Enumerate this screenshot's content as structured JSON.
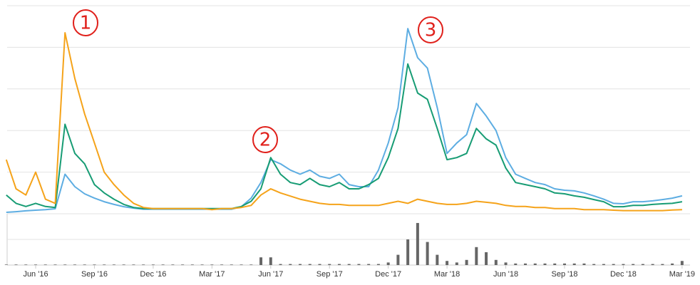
{
  "chart_data": {
    "type": "line",
    "categories": [
      null,
      null,
      null,
      "Jun '16",
      null,
      null,
      null,
      null,
      null,
      "Sep '16",
      null,
      null,
      null,
      null,
      null,
      "Dec '16",
      null,
      null,
      null,
      null,
      null,
      "Mar '17",
      null,
      null,
      null,
      null,
      null,
      "Jun '17",
      null,
      null,
      null,
      null,
      null,
      "Sep '17",
      null,
      null,
      null,
      null,
      null,
      "Dec '17",
      null,
      null,
      null,
      null,
      null,
      "Mar '18",
      null,
      null,
      null,
      null,
      null,
      "Jun '18",
      null,
      null,
      null,
      null,
      null,
      "Sep '18",
      null,
      null,
      null,
      null,
      null,
      "Dec '18",
      null,
      null,
      null,
      null,
      null,
      "Mar '19"
    ],
    "series": [
      {
        "color": "#5dade2",
        "values": [
          0.7,
          1,
          1.4,
          1.7,
          2,
          2.4,
          19,
          13,
          9.6,
          7.5,
          5.8,
          4.5,
          3.4,
          2.7,
          2.2,
          2.2,
          2.2,
          2.2,
          2.2,
          2.2,
          2.2,
          2.2,
          2.2,
          2.2,
          3.4,
          7.5,
          15,
          26,
          24,
          21,
          19,
          21,
          18,
          17,
          19,
          14,
          13,
          13,
          21,
          34,
          51,
          89,
          75,
          70,
          51,
          29,
          34,
          38,
          53,
          47,
          40,
          27,
          19,
          17,
          15,
          14,
          12,
          11.3,
          11,
          10,
          8.6,
          7,
          5,
          4.8,
          5.8,
          5.8,
          6.2,
          6.8,
          7.5,
          8.6
        ]
      },
      {
        "color": "#179c74",
        "values": [
          9,
          5,
          3.5,
          5,
          3.5,
          3,
          43,
          29,
          24,
          14,
          10,
          7,
          4.5,
          3,
          2.5,
          2.5,
          2.5,
          2.5,
          2.5,
          2.5,
          2.5,
          2.5,
          2.5,
          2.5,
          3.5,
          6,
          12,
          27,
          19,
          15,
          14,
          17,
          14,
          13,
          15,
          12,
          12,
          14,
          17,
          27,
          41,
          72,
          58,
          55,
          41,
          26,
          27,
          29,
          41,
          36,
          33,
          22,
          15,
          14,
          13,
          12,
          10,
          9.6,
          8.6,
          7.9,
          6.8,
          5.8,
          3.4,
          3.4,
          4,
          4,
          4.5,
          4.8,
          5,
          5.8
        ]
      },
      {
        "color": "#f5a31a",
        "values": [
          26,
          12,
          9,
          20,
          7,
          5,
          87,
          65,
          48,
          34,
          20,
          14,
          9,
          5,
          3,
          2.5,
          2.5,
          2.5,
          2.5,
          2.5,
          2.5,
          2,
          2.5,
          2.5,
          3,
          4,
          9,
          12,
          10,
          8.5,
          7,
          6,
          5,
          4.5,
          4.5,
          4,
          4,
          4,
          4,
          5,
          6,
          5,
          7,
          6,
          5,
          4.5,
          4.5,
          5,
          6,
          5.5,
          5,
          4,
          3.5,
          3.5,
          3,
          3,
          2.5,
          2.5,
          2.5,
          2,
          2,
          2,
          1.7,
          1.5,
          1.5,
          1.5,
          1.5,
          1.5,
          1.8,
          2
        ]
      }
    ],
    "ylim": [
      0,
      100
    ],
    "yticks": [
      0,
      20,
      40,
      60,
      80,
      100
    ],
    "y_tick_labels": false,
    "grid": true,
    "volume": {
      "color": "#666666",
      "ylim": [
        0,
        100
      ],
      "yticks": [
        50
      ],
      "values": [
        1,
        1,
        1,
        1,
        1,
        1,
        1,
        1,
        1,
        1,
        1,
        1,
        1,
        1,
        1,
        1,
        1,
        1,
        1,
        1,
        1,
        1,
        1,
        1,
        1,
        1,
        15,
        15,
        2,
        2,
        2,
        2,
        2,
        2,
        2,
        2,
        2,
        2,
        2,
        5,
        20,
        50,
        82,
        45,
        20,
        8,
        5,
        10,
        35,
        25,
        10,
        5,
        3,
        3,
        3,
        3,
        3,
        3,
        3,
        3,
        2,
        2,
        2,
        2,
        2,
        2,
        2,
        2,
        3,
        8
      ]
    },
    "annotations": [
      "1",
      "2",
      "3"
    ],
    "annotation_color": "#e0201b"
  }
}
